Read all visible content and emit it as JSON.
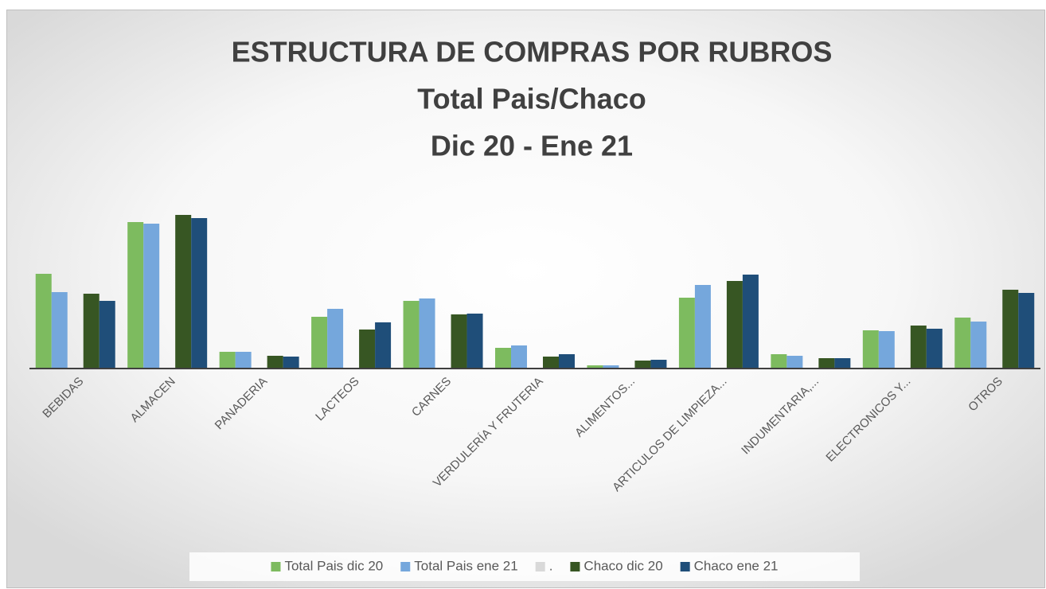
{
  "chart_data": {
    "type": "bar",
    "title": "ESTRUCTURA DE COMPRAS POR RUBROS",
    "subtitle": [
      "Total Pais/Chaco",
      "Dic 20 - Ene 21"
    ],
    "categories": [
      "BEBIDAS",
      "ALMACEN",
      "PANADERIA",
      "LACTEOS",
      "CARNES",
      "VERDULERÍA Y FRUTERIA",
      "ALIMENTOS...",
      "ARTICULOS DE LIMPIEZA...",
      "INDUMENTARIA,...",
      "ELECTRONICOS Y...",
      "OTROS"
    ],
    "series": [
      {
        "name": "Total Pais dic 20",
        "color": "#7dbb5f",
        "values": [
          119,
          184,
          21,
          65,
          85,
          26,
          4,
          89,
          18,
          48,
          64
        ]
      },
      {
        "name": "Total Pais ene 21",
        "color": "#75a7dc",
        "values": [
          96,
          182,
          21,
          75,
          88,
          29,
          4,
          105,
          16,
          47,
          59
        ]
      },
      {
        "name": ".",
        "color": "#d9d9d9",
        "values": [
          null,
          null,
          null,
          null,
          null,
          null,
          null,
          null,
          null,
          null,
          null
        ]
      },
      {
        "name": "Chaco dic 20",
        "color": "#375623",
        "values": [
          94,
          193,
          16,
          49,
          68,
          15,
          10,
          110,
          13,
          54,
          99
        ]
      },
      {
        "name": "Chaco ene 21",
        "color": "#1f4e79",
        "values": [
          85,
          189,
          15,
          58,
          69,
          18,
          11,
          118,
          13,
          50,
          95
        ]
      }
    ],
    "ylim": [
      0,
      200
    ],
    "grid": false,
    "legend": "bottom"
  }
}
